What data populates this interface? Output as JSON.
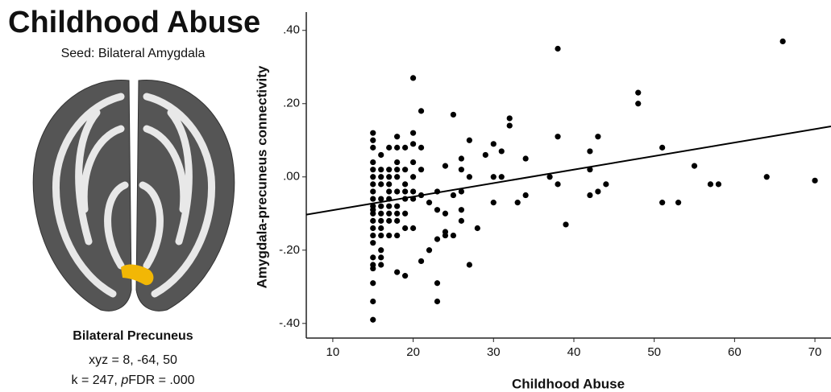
{
  "panel": {
    "title": "Childhood Abuse",
    "subtitle": "Seed: Bilateral Amygdala",
    "region": "Bilateral Precuneus",
    "coords": "xyz = 8, -64, 50",
    "stats": [
      "k = 247, ",
      "p",
      "FDR = .000"
    ]
  },
  "chart_data": {
    "type": "scatter",
    "xlabel": "Childhood Abuse",
    "ylabel": "Amygdala-precuneus connectivity",
    "xlim": [
      6.7,
      72
    ],
    "ylim": [
      -0.44,
      0.45
    ],
    "xticks": [
      10,
      20,
      30,
      40,
      50,
      60,
      70
    ],
    "yticks": [
      {
        "value": 0.4,
        "label": ".40"
      },
      {
        "value": 0.2,
        "label": ".20"
      },
      {
        "value": 0,
        "label": ".00"
      },
      {
        "value": -0.2,
        "label": "-.20"
      },
      {
        "value": -0.4,
        "label": "-.40"
      }
    ],
    "color": "#000",
    "x": [
      15,
      15,
      15,
      15,
      15,
      15,
      15,
      15,
      15,
      15,
      15,
      15,
      15,
      15,
      15,
      15,
      15,
      15,
      15,
      15,
      15,
      15,
      16,
      16,
      16,
      16,
      16,
      16,
      16,
      16,
      16,
      16,
      16,
      16,
      16,
      17,
      17,
      17,
      17,
      17,
      17,
      17,
      17,
      17,
      17,
      18,
      18,
      18,
      18,
      18,
      18,
      18,
      18,
      18,
      18,
      18,
      19,
      19,
      19,
      19,
      19,
      19,
      19,
      19,
      20,
      20,
      20,
      20,
      20,
      20,
      20,
      20,
      21,
      21,
      21,
      21,
      21,
      22,
      22,
      23,
      23,
      23,
      23,
      23,
      24,
      24,
      24,
      24,
      25,
      25,
      25,
      26,
      26,
      26,
      26,
      26,
      27,
      27,
      27,
      28,
      29,
      30,
      30,
      30,
      31,
      31,
      32,
      32,
      33,
      34,
      34,
      37,
      38,
      38,
      38,
      39,
      42,
      42,
      42,
      43,
      43,
      44,
      48,
      48,
      51,
      51,
      53,
      55,
      57,
      58,
      64,
      66,
      70
    ],
    "values": [
      0.12,
      0.1,
      0.08,
      0.04,
      0.02,
      0.0,
      -0.02,
      -0.04,
      -0.06,
      -0.08,
      -0.09,
      -0.1,
      -0.12,
      -0.14,
      -0.16,
      -0.18,
      -0.22,
      -0.24,
      -0.25,
      -0.29,
      -0.34,
      -0.39,
      0.06,
      0.02,
      0.0,
      -0.02,
      -0.06,
      -0.08,
      -0.1,
      -0.12,
      -0.14,
      -0.16,
      -0.2,
      -0.22,
      -0.24,
      0.08,
      0.02,
      0.0,
      -0.02,
      -0.04,
      -0.06,
      -0.08,
      -0.1,
      -0.12,
      -0.16,
      0.11,
      0.08,
      0.04,
      0.02,
      0.0,
      -0.04,
      -0.08,
      -0.1,
      -0.12,
      -0.16,
      -0.26,
      0.08,
      0.02,
      -0.02,
      -0.04,
      -0.06,
      -0.1,
      -0.14,
      -0.27,
      0.27,
      0.12,
      0.09,
      0.04,
      0.0,
      -0.04,
      -0.06,
      -0.14,
      0.18,
      0.08,
      0.02,
      -0.05,
      -0.23,
      -0.07,
      -0.2,
      -0.04,
      -0.09,
      -0.17,
      -0.29,
      -0.34,
      0.03,
      -0.1,
      -0.15,
      -0.16,
      0.17,
      -0.05,
      -0.16,
      0.05,
      0.02,
      -0.04,
      -0.09,
      -0.12,
      0.1,
      0.0,
      -0.24,
      -0.14,
      0.06,
      0.09,
      0.0,
      -0.07,
      0.07,
      0.0,
      0.16,
      0.14,
      -0.07,
      0.05,
      -0.05,
      0.0,
      0.35,
      0.11,
      -0.02,
      -0.13,
      0.07,
      0.02,
      -0.05,
      0.11,
      -0.04,
      -0.02,
      0.23,
      0.2,
      0.08,
      -0.07,
      -0.07,
      0.03,
      -0.02,
      -0.02,
      0.0,
      0.37,
      -0.01
    ],
    "trend_line": {
      "x": [
        6.7,
        72
      ],
      "y": [
        -0.103,
        0.138
      ]
    }
  }
}
